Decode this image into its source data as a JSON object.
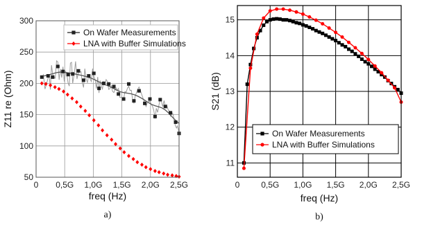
{
  "chart_data": [
    {
      "type": "line",
      "caption": "a)",
      "xlabel": "freq (Hz)",
      "ylabel": "Z11 re (Ohm)",
      "xlim": [
        0,
        2.5
      ],
      "ylim": [
        50,
        300
      ],
      "xticks": [
        0,
        0.5,
        1.0,
        1.5,
        2.0,
        2.5
      ],
      "xtick_labels": [
        "0",
        "0,5G",
        "1,0G",
        "1,5G",
        "2,0G",
        "2,5G"
      ],
      "yticks": [
        50,
        100,
        150,
        200,
        250,
        300
      ],
      "ytick_labels": [
        "50",
        "100",
        "150",
        "200",
        "250",
        "300"
      ],
      "grid": true,
      "legend_position": "top-right",
      "series": [
        {
          "name": "On Wafer Measurements",
          "color": "#222222",
          "marker": "square",
          "x": [
            0.1,
            0.21,
            0.29,
            0.38,
            0.47,
            0.56,
            0.64,
            0.74,
            0.83,
            0.92,
            1.01,
            1.1,
            1.18,
            1.27,
            1.36,
            1.44,
            1.53,
            1.62,
            1.71,
            1.8,
            1.9,
            1.99,
            2.08,
            2.17,
            2.26,
            2.35,
            2.44,
            2.5
          ],
          "y": [
            210,
            212,
            210,
            227,
            219,
            214,
            215,
            220,
            205,
            212,
            216,
            192,
            200,
            199,
            195,
            183,
            175,
            199,
            172,
            188,
            168,
            175,
            147,
            174,
            163,
            153,
            138,
            120
          ]
        },
        {
          "name": "LNA with Buffer Simulations",
          "color": "#ff0000",
          "marker": "diamond",
          "x": [
            0.1,
            0.17,
            0.25,
            0.33,
            0.4,
            0.48,
            0.55,
            0.63,
            0.71,
            0.78,
            0.86,
            0.93,
            1.01,
            1.09,
            1.16,
            1.24,
            1.32,
            1.39,
            1.47,
            1.54,
            1.62,
            1.7,
            1.77,
            1.85,
            1.92,
            2.0,
            2.08,
            2.15,
            2.23,
            2.3,
            2.38,
            2.45,
            2.5
          ],
          "y": [
            200,
            199,
            197,
            194,
            191,
            187,
            182,
            176,
            170,
            163,
            156,
            149,
            141,
            133,
            125,
            117,
            110,
            103,
            96,
            90,
            84,
            79,
            74,
            70,
            66,
            63,
            60,
            58,
            56,
            54,
            53,
            52,
            51
          ]
        }
      ]
    },
    {
      "type": "line",
      "caption": "b)",
      "xlabel": "freq (Hz)",
      "ylabel": "S21 (dB)",
      "xlim": [
        0,
        2.5
      ],
      "ylim": [
        10.6,
        15.4
      ],
      "xticks": [
        0,
        0.5,
        1.0,
        1.5,
        2.0,
        2.5
      ],
      "xtick_labels": [
        "0",
        "0,5G",
        "1,0G",
        "1,5G",
        "2,0G",
        "2,5G"
      ],
      "yticks": [
        11,
        12,
        13,
        14,
        15
      ],
      "ytick_labels": [
        "11",
        "12",
        "13",
        "14",
        "15"
      ],
      "grid": true,
      "legend_position": "bottom-right",
      "series": [
        {
          "name": "On Wafer Measurements",
          "color": "#000000",
          "marker": "square",
          "x": [
            0.1,
            0.15,
            0.2,
            0.25,
            0.3,
            0.35,
            0.4,
            0.45,
            0.5,
            0.55,
            0.6,
            0.65,
            0.7,
            0.75,
            0.8,
            0.85,
            0.9,
            0.95,
            1.0,
            1.05,
            1.1,
            1.15,
            1.2,
            1.25,
            1.3,
            1.35,
            1.4,
            1.45,
            1.5,
            1.55,
            1.6,
            1.65,
            1.7,
            1.75,
            1.8,
            1.85,
            1.9,
            1.95,
            2.0,
            2.05,
            2.1,
            2.15,
            2.2,
            2.25,
            2.3,
            2.35,
            2.4,
            2.45,
            2.5
          ],
          "y": [
            11.0,
            13.2,
            13.75,
            14.2,
            14.5,
            14.7,
            14.85,
            14.95,
            15.0,
            15.02,
            15.03,
            15.02,
            15.0,
            15.0,
            14.98,
            14.95,
            14.92,
            14.9,
            14.86,
            14.83,
            14.79,
            14.75,
            14.7,
            14.66,
            14.62,
            14.57,
            14.52,
            14.47,
            14.42,
            14.36,
            14.3,
            14.25,
            14.18,
            14.12,
            14.05,
            13.98,
            13.9,
            13.83,
            13.77,
            13.7,
            13.62,
            13.55,
            13.47,
            13.4,
            13.3,
            13.22,
            13.13,
            13.05,
            12.95
          ]
        },
        {
          "name": "LNA with Buffer Simulations",
          "color": "#ff0000",
          "marker": "circle",
          "x": [
            0.1,
            0.2,
            0.3,
            0.4,
            0.5,
            0.6,
            0.7,
            0.8,
            0.9,
            1.0,
            1.1,
            1.2,
            1.3,
            1.4,
            1.5,
            1.6,
            1.7,
            1.8,
            1.9,
            2.0,
            2.1,
            2.2,
            2.3,
            2.4,
            2.5
          ],
          "y": [
            10.85,
            13.65,
            14.6,
            15.05,
            15.25,
            15.3,
            15.3,
            15.27,
            15.22,
            15.16,
            15.08,
            14.99,
            14.89,
            14.77,
            14.65,
            14.52,
            14.37,
            14.22,
            14.06,
            13.89,
            13.71,
            13.52,
            13.31,
            13.1,
            12.7
          ]
        }
      ]
    }
  ]
}
